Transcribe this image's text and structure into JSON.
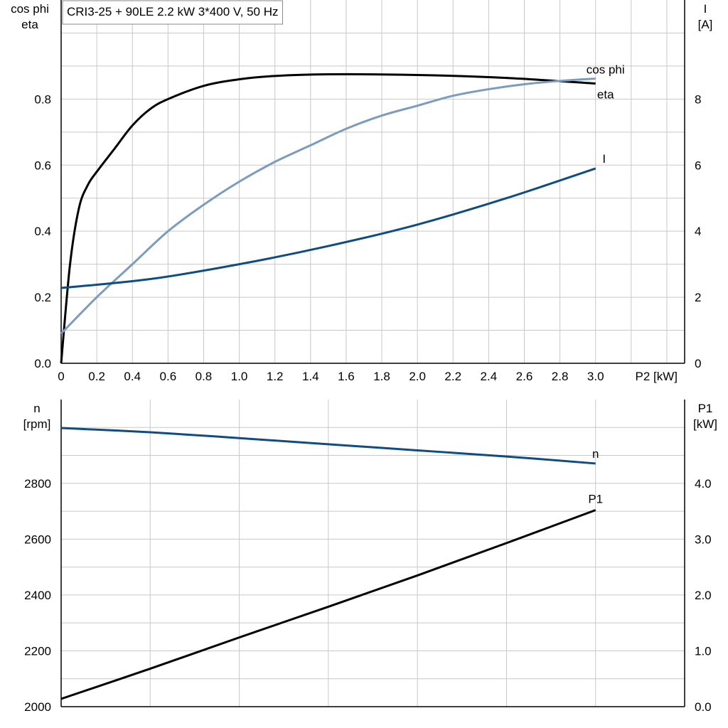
{
  "chart_data": [
    {
      "type": "line",
      "title": "CRI3-25 + 90LE   2.2 kW   3*400 V, 50 Hz",
      "xlabel": "P2 [kW]",
      "ylabel": [
        "cos phi",
        "eta"
      ],
      "y2label": [
        "I",
        "[A]"
      ],
      "xlim": [
        0,
        3.5
      ],
      "ylim": [
        0,
        1.1
      ],
      "y2lim": [
        0,
        11
      ],
      "xticks": [
        "0",
        "0.2",
        "0.4",
        "0.6",
        "0.8",
        "1.0",
        "1.2",
        "1.4",
        "1.6",
        "1.8",
        "2.0",
        "2.2",
        "2.4",
        "2.6",
        "2.8",
        "3.0"
      ],
      "yticks": [
        "0.0",
        "0.2",
        "0.4",
        "0.6",
        "0.8"
      ],
      "y2ticks": [
        "0",
        "2",
        "4",
        "6",
        "8"
      ],
      "grid": true,
      "series": [
        {
          "name": "eta",
          "axis": "left",
          "color": "#000000",
          "x": [
            0,
            0.05,
            0.1,
            0.15,
            0.2,
            0.3,
            0.4,
            0.5,
            0.6,
            0.8,
            1.0,
            1.2,
            1.5,
            2.0,
            2.5,
            3.0
          ],
          "y": [
            0,
            0.3,
            0.47,
            0.54,
            0.58,
            0.65,
            0.72,
            0.77,
            0.8,
            0.84,
            0.86,
            0.87,
            0.875,
            0.873,
            0.864,
            0.847
          ]
        },
        {
          "name": "cos phi",
          "axis": "left",
          "color": "#7a9cbf",
          "x": [
            0,
            0.2,
            0.4,
            0.6,
            0.8,
            1.0,
            1.2,
            1.4,
            1.6,
            1.8,
            2.0,
            2.2,
            2.4,
            2.6,
            2.8,
            3.0
          ],
          "y": [
            0.09,
            0.2,
            0.3,
            0.4,
            0.48,
            0.55,
            0.61,
            0.66,
            0.71,
            0.75,
            0.78,
            0.81,
            0.83,
            0.845,
            0.855,
            0.862
          ]
        },
        {
          "name": "I",
          "axis": "right",
          "color": "#0f4c81",
          "x": [
            0,
            0.5,
            1.0,
            1.5,
            2.0,
            2.5,
            3.0
          ],
          "y": [
            2.28,
            2.55,
            3.0,
            3.55,
            4.2,
            5.0,
            5.9
          ]
        }
      ]
    },
    {
      "type": "line",
      "ylabel": [
        "n",
        "[rpm]"
      ],
      "y2label": [
        "P1",
        "[kW]"
      ],
      "xlim": [
        0,
        3.5
      ],
      "ylim": [
        2000,
        3100
      ],
      "y2lim": [
        0,
        5.5
      ],
      "yticks": [
        "2000",
        "2200",
        "2400",
        "2600",
        "2800"
      ],
      "y2ticks": [
        "0.0",
        "1.0",
        "2.0",
        "3.0",
        "4.0"
      ],
      "grid": true,
      "series": [
        {
          "name": "n",
          "axis": "left",
          "color": "#0f4c81",
          "x": [
            0,
            0.5,
            1.0,
            1.5,
            2.0,
            2.5,
            3.0
          ],
          "y": [
            2998,
            2983,
            2962,
            2940,
            2918,
            2896,
            2871
          ]
        },
        {
          "name": "P1",
          "axis": "right",
          "color": "#000000",
          "x": [
            0,
            0.5,
            1.0,
            1.5,
            2.0,
            2.5,
            3.0
          ],
          "y": [
            0.14,
            0.68,
            1.24,
            1.79,
            2.35,
            2.93,
            3.52
          ]
        }
      ]
    }
  ]
}
